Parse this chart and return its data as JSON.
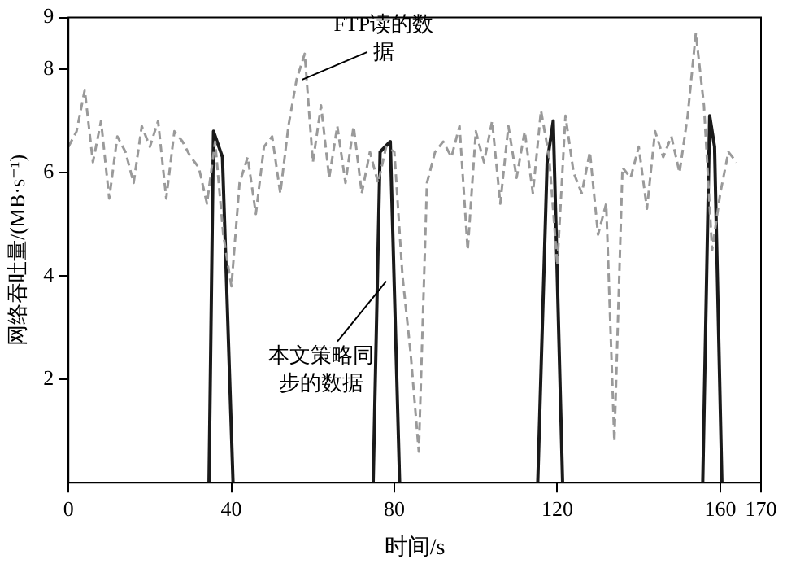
{
  "chart_data": {
    "type": "line",
    "xlabel": "时间/s",
    "ylabel": "网络吞吐量/(MB·s⁻¹)",
    "xlim": [
      0,
      170
    ],
    "xticks": [
      0,
      40,
      80,
      120,
      160,
      170
    ],
    "ylim": [
      0,
      9
    ],
    "yticks": [
      2,
      4,
      6,
      8,
      9
    ],
    "grid": false,
    "legend": false,
    "marker": "none",
    "series": [
      {
        "color": "#9a9a9a",
        "line_style": "dashed",
        "x": [
          0,
          2,
          4,
          6,
          8,
          10,
          12,
          14,
          16,
          18,
          20,
          22,
          24,
          26,
          28,
          30,
          32,
          34,
          36,
          38,
          40,
          42,
          44,
          46,
          48,
          50,
          52,
          54,
          56,
          58,
          60,
          62,
          64,
          66,
          68,
          70,
          72,
          74,
          76,
          78,
          80,
          82,
          84,
          86,
          88,
          90,
          92,
          94,
          96,
          98,
          100,
          102,
          104,
          106,
          108,
          110,
          112,
          114,
          116,
          118,
          120,
          122,
          124,
          126,
          128,
          130,
          132,
          134,
          136,
          138,
          140,
          142,
          144,
          146,
          148,
          150,
          152,
          154,
          156,
          158,
          160,
          162,
          164
        ],
        "values": [
          6.5,
          6.8,
          7.6,
          6.2,
          7.0,
          5.5,
          6.7,
          6.4,
          5.8,
          6.9,
          6.5,
          7.0,
          5.5,
          6.8,
          6.6,
          6.3,
          6.1,
          5.4,
          6.6,
          4.8,
          3.8,
          5.8,
          6.3,
          5.2,
          6.5,
          6.7,
          5.6,
          6.9,
          7.8,
          8.3,
          6.2,
          7.3,
          5.9,
          6.9,
          5.8,
          6.9,
          5.6,
          6.4,
          5.8,
          6.5,
          6.4,
          4.0,
          2.5,
          0.6,
          5.8,
          6.4,
          6.6,
          6.3,
          6.9,
          4.5,
          6.8,
          6.2,
          7.0,
          5.4,
          6.9,
          5.9,
          6.8,
          5.6,
          7.2,
          6.3,
          4.2,
          7.1,
          6.0,
          5.6,
          6.4,
          4.8,
          5.4,
          0.8,
          6.1,
          5.9,
          6.5,
          5.3,
          6.8,
          6.3,
          6.7,
          6.0,
          7.1,
          8.7,
          7.3,
          4.5,
          5.6,
          6.4,
          6.2
        ]
      },
      {
        "color": "#1a1a1a",
        "line_style": "solid",
        "x": [
          34.5,
          35.6,
          37.8,
          40.4,
          58,
          74.8,
          76.5,
          79,
          81.3,
          100,
          115.2,
          117.5,
          119,
          121.3,
          140,
          155.7,
          157.4,
          158.6,
          160.4
        ],
        "values": [
          0,
          6.8,
          6.3,
          0,
          null,
          0,
          6.4,
          6.6,
          0,
          null,
          0,
          6.2,
          7.0,
          0,
          null,
          0,
          7.1,
          6.5,
          0
        ]
      }
    ],
    "annotations": [
      {
        "text": "FTP读的数据",
        "x": 57.4,
        "y": 7.8
      },
      {
        "text": "本文策略同步的数据",
        "x": 78,
        "y": 3.9
      }
    ]
  }
}
